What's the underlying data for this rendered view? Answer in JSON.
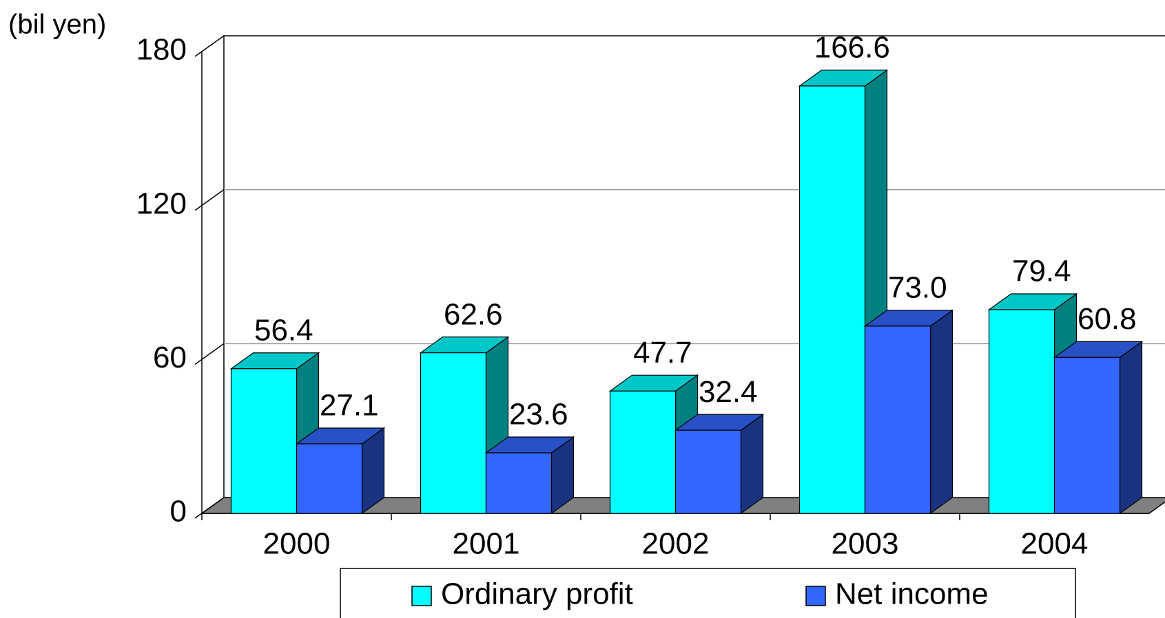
{
  "chart_data": {
    "type": "bar3d",
    "y_axis_label": "(bil yen)",
    "categories": [
      "2000",
      "2001",
      "2002",
      "2003",
      "2004"
    ],
    "series": [
      {
        "name": "Ordinary profit",
        "color": "#00ffff",
        "values": [
          56.4,
          62.6,
          47.7,
          166.6,
          79.4
        ]
      },
      {
        "name": "Net income",
        "color": "#3366ff",
        "values": [
          27.1,
          23.6,
          32.4,
          73.0,
          60.8
        ],
        "value_labels": [
          "27.1",
          "23.6",
          "32.4",
          "73.0",
          "60.8"
        ]
      }
    ],
    "ylim": [
      0,
      180
    ],
    "yticks": [
      0,
      60,
      120,
      180
    ],
    "grid": true,
    "legend": "bottom"
  }
}
